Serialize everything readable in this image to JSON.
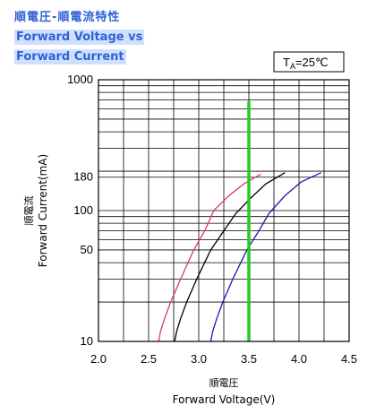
{
  "header": {
    "title_cn": "順電圧-順電流特性",
    "title_en_1": "Forward Voltage vs",
    "title_en_2": "Forward Current"
  },
  "condition": {
    "symbol": "T",
    "subscript": "A",
    "value": "=25℃"
  },
  "chart_data": {
    "type": "line",
    "title": "Forward Voltage vs Forward Current",
    "xlabel_cn": "順電圧",
    "xlabel": "Forward Voltage(V)",
    "ylabel_cn": "順電流",
    "ylabel": "Forward Current(mA)",
    "xlim": [
      2.0,
      4.5
    ],
    "ylim": [
      10,
      1000
    ],
    "y_scale": "log",
    "x_ticks": [
      "2.0",
      "2.5",
      "3.0",
      "3.5",
      "4.0",
      "4.5"
    ],
    "y_tick_labels": [
      {
        "value": 10,
        "label": "10"
      },
      {
        "value": 50,
        "label": "50"
      },
      {
        "value": 100,
        "label": "100"
      },
      {
        "value": 180,
        "label": "180"
      },
      {
        "value": 1000,
        "label": "1000"
      }
    ],
    "grid": true,
    "reference_line": {
      "x": 3.5,
      "color": "#22cc22"
    },
    "series": [
      {
        "color": "#e23370",
        "points": [
          [
            2.6,
            10
          ],
          [
            2.62,
            12
          ],
          [
            2.66,
            15
          ],
          [
            2.72,
            20
          ],
          [
            2.82,
            30
          ],
          [
            2.95,
            50
          ],
          [
            3.06,
            70
          ],
          [
            3.15,
            100
          ],
          [
            3.3,
            130
          ],
          [
            3.45,
            160
          ],
          [
            3.62,
            190
          ]
        ]
      },
      {
        "color": "#000000",
        "points": [
          [
            2.76,
            10
          ],
          [
            2.78,
            12
          ],
          [
            2.82,
            15
          ],
          [
            2.88,
            20
          ],
          [
            2.98,
            30
          ],
          [
            3.12,
            50
          ],
          [
            3.25,
            70
          ],
          [
            3.37,
            95
          ],
          [
            3.52,
            125
          ],
          [
            3.67,
            160
          ],
          [
            3.86,
            195
          ]
        ]
      },
      {
        "color": "#1a1ab0",
        "points": [
          [
            3.12,
            10
          ],
          [
            3.14,
            12
          ],
          [
            3.18,
            15
          ],
          [
            3.24,
            20
          ],
          [
            3.34,
            30
          ],
          [
            3.48,
            50
          ],
          [
            3.6,
            70
          ],
          [
            3.7,
            95
          ],
          [
            3.86,
            130
          ],
          [
            4.02,
            165
          ],
          [
            4.22,
            195
          ]
        ]
      }
    ]
  }
}
